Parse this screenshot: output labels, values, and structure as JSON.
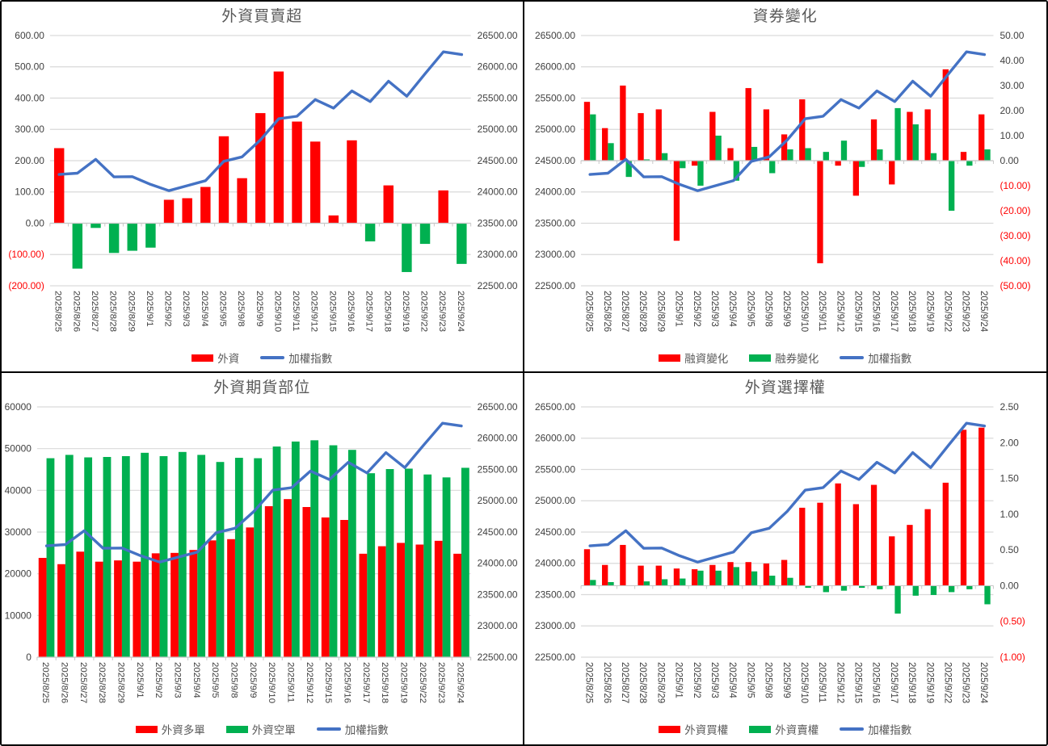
{
  "colors": {
    "bar_red": "#FF0000",
    "bar_green": "#00B050",
    "line_blue": "#4472C4",
    "grid": "#D9D9D9",
    "axis_line": "#C9C9C9",
    "axis_text": "#404040",
    "negative_label": "#FF0000",
    "title_text": "#595959",
    "legend_text": "#595959"
  },
  "chart_data": [
    {
      "type": "bar",
      "title": "外資買賣超",
      "categories": [
        "2025/8/25",
        "2025/8/26",
        "2025/8/27",
        "2025/8/28",
        "2025/8/29",
        "2025/9/1",
        "2025/9/2",
        "2025/9/3",
        "2025/9/4",
        "2025/9/5",
        "2025/9/8",
        "2025/9/9",
        "2025/9/10",
        "2025/9/11",
        "2025/9/12",
        "2025/9/15",
        "2025/9/16",
        "2025/9/17",
        "2025/9/18",
        "2025/9/19",
        "2025/9/22",
        "2025/9/23",
        "2025/9/24"
      ],
      "left_axis": {
        "min": -200,
        "max": 600,
        "step": 100,
        "format": "dec2p"
      },
      "right_axis": {
        "min": 22500,
        "max": 26500,
        "step": 500,
        "format": "dec2"
      },
      "series": [
        {
          "name": "外資",
          "type": "bar",
          "axis": "left",
          "color": "#FF0000",
          "neg_color": "#00B050",
          "values": [
            240,
            -145,
            -15,
            -95,
            -88,
            -78,
            75,
            80,
            116,
            278,
            144,
            352,
            485,
            325,
            261,
            25,
            265,
            -58,
            121,
            -156,
            -66,
            105,
            -130
          ]
        },
        {
          "name": "加權指數",
          "type": "line",
          "axis": "right",
          "color": "#4472C4",
          "values": [
            24280,
            24300,
            24520,
            24240,
            24245,
            24120,
            24020,
            24100,
            24180,
            24490,
            24560,
            24830,
            25170,
            25210,
            25475,
            25340,
            25615,
            25445,
            25770,
            25530,
            25890,
            26240,
            26195
          ]
        }
      ]
    },
    {
      "type": "bar",
      "title": "資券變化",
      "categories": [
        "2025/8/25",
        "2025/8/26",
        "2025/8/27",
        "2025/8/28",
        "2025/8/29",
        "2025/9/1",
        "2025/9/2",
        "2025/9/3",
        "2025/9/4",
        "2025/9/5",
        "2025/9/8",
        "2025/9/9",
        "2025/9/10",
        "2025/9/11",
        "2025/9/12",
        "2025/9/15",
        "2025/9/16",
        "2025/9/17",
        "2025/9/18",
        "2025/9/19",
        "2025/9/22",
        "2025/9/23",
        "2025/9/24"
      ],
      "left_axis": {
        "min": 22500,
        "max": 26500,
        "step": 500,
        "format": "dec2"
      },
      "right_axis": {
        "min": -50,
        "max": 50,
        "step": 10,
        "format": "dec2p"
      },
      "series": [
        {
          "name": "融資變化",
          "type": "bar",
          "axis": "right",
          "color": "#FF0000",
          "values": [
            23.5,
            13,
            30,
            19,
            20.5,
            -32,
            -2,
            19.5,
            5,
            29,
            20.5,
            10.5,
            24.5,
            -41,
            -2,
            -14,
            16.5,
            -9.5,
            19.5,
            20.5,
            36.5,
            3.5,
            18.5
          ]
        },
        {
          "name": "融券變化",
          "type": "bar",
          "axis": "right",
          "color": "#00B050",
          "values": [
            18.5,
            7,
            -6.5,
            0.5,
            3,
            -3,
            -10,
            10,
            -8,
            5.5,
            -5,
            4.5,
            5,
            3.5,
            8,
            -2.5,
            4.5,
            21,
            14.5,
            3,
            -20,
            -2,
            4.5
          ]
        },
        {
          "name": "加權指數",
          "type": "line",
          "axis": "left",
          "color": "#4472C4",
          "values": [
            24280,
            24300,
            24520,
            24240,
            24245,
            24120,
            24020,
            24100,
            24180,
            24490,
            24560,
            24830,
            25170,
            25210,
            25475,
            25340,
            25615,
            25445,
            25770,
            25530,
            25890,
            26240,
            26195
          ]
        }
      ]
    },
    {
      "type": "bar",
      "title": "外資期貨部位",
      "categories": [
        "2025/8/25",
        "2025/8/26",
        "2025/8/27",
        "2025/8/28",
        "2025/8/29",
        "2025/9/1",
        "2025/9/2",
        "2025/9/3",
        "2025/9/4",
        "2025/9/5",
        "2025/9/8",
        "2025/9/9",
        "2025/9/10",
        "2025/9/11",
        "2025/9/12",
        "2025/9/15",
        "2025/9/16",
        "2025/9/17",
        "2025/9/18",
        "2025/9/19",
        "2025/9/22",
        "2025/9/23",
        "2025/9/24"
      ],
      "left_axis": {
        "min": 0,
        "max": 60000,
        "step": 10000,
        "format": "int"
      },
      "right_axis": {
        "min": 22500,
        "max": 26500,
        "step": 500,
        "format": "dec2"
      },
      "series": [
        {
          "name": "外資多單",
          "type": "bar",
          "axis": "left",
          "color": "#FF0000",
          "values": [
            23800,
            22300,
            25300,
            22900,
            23200,
            22900,
            24900,
            25000,
            25700,
            28000,
            28300,
            31100,
            36200,
            37900,
            36000,
            33500,
            32900,
            24800,
            26600,
            27400,
            27000,
            27900,
            24800
          ]
        },
        {
          "name": "外資空單",
          "type": "bar",
          "axis": "left",
          "color": "#00B050",
          "values": [
            47700,
            48500,
            47900,
            48000,
            48200,
            49000,
            48200,
            49200,
            48500,
            46800,
            47800,
            47700,
            50500,
            51700,
            52000,
            50800,
            49700,
            44100,
            45100,
            45200,
            43800,
            43100,
            45400
          ]
        },
        {
          "name": "加權指數",
          "type": "line",
          "axis": "right",
          "color": "#4472C4",
          "values": [
            24280,
            24300,
            24520,
            24240,
            24245,
            24120,
            24020,
            24100,
            24180,
            24490,
            24560,
            24830,
            25170,
            25210,
            25475,
            25340,
            25615,
            25445,
            25770,
            25530,
            25890,
            26240,
            26195
          ]
        }
      ]
    },
    {
      "type": "bar",
      "title": "外資選擇權",
      "categories": [
        "2025/8/25",
        "2025/8/26",
        "2025/8/27",
        "2025/8/28",
        "2025/8/29",
        "2025/9/1",
        "2025/9/2",
        "2025/9/3",
        "2025/9/4",
        "2025/9/5",
        "2025/9/8",
        "2025/9/9",
        "2025/9/10",
        "2025/9/11",
        "2025/9/12",
        "2025/9/15",
        "2025/9/16",
        "2025/9/17",
        "2025/9/18",
        "2025/9/19",
        "2025/9/22",
        "2025/9/23",
        "2025/9/24"
      ],
      "left_axis": {
        "min": 22500,
        "max": 26500,
        "step": 500,
        "format": "dec2"
      },
      "right_axis": {
        "min": -1,
        "max": 2.5,
        "step": 0.5,
        "format": "dec2p"
      },
      "series": [
        {
          "name": "外資買權",
          "type": "bar",
          "axis": "right",
          "color": "#FF0000",
          "values": [
            0.51,
            0.29,
            0.57,
            0.28,
            0.28,
            0.24,
            0.23,
            0.29,
            0.33,
            0.33,
            0.31,
            0.36,
            1.09,
            1.16,
            1.43,
            1.14,
            1.41,
            0.69,
            0.85,
            1.07,
            1.44,
            2.18,
            2.21
          ]
        },
        {
          "name": "外資賣權",
          "type": "bar",
          "axis": "right",
          "color": "#00B050",
          "values": [
            0.08,
            0.05,
            0,
            0.06,
            0.09,
            0.1,
            0.21,
            0.21,
            0.26,
            0.2,
            0.14,
            0.11,
            -0.03,
            -0.09,
            -0.07,
            -0.03,
            -0.05,
            -0.39,
            -0.14,
            -0.13,
            -0.09,
            -0.05,
            -0.26
          ]
        },
        {
          "name": "加權指數",
          "type": "line",
          "axis": "left",
          "color": "#4472C4",
          "values": [
            24280,
            24300,
            24520,
            24240,
            24245,
            24120,
            24020,
            24100,
            24180,
            24490,
            24560,
            24830,
            25170,
            25210,
            25475,
            25340,
            25615,
            25445,
            25770,
            25530,
            25890,
            26240,
            26195
          ]
        }
      ]
    }
  ]
}
